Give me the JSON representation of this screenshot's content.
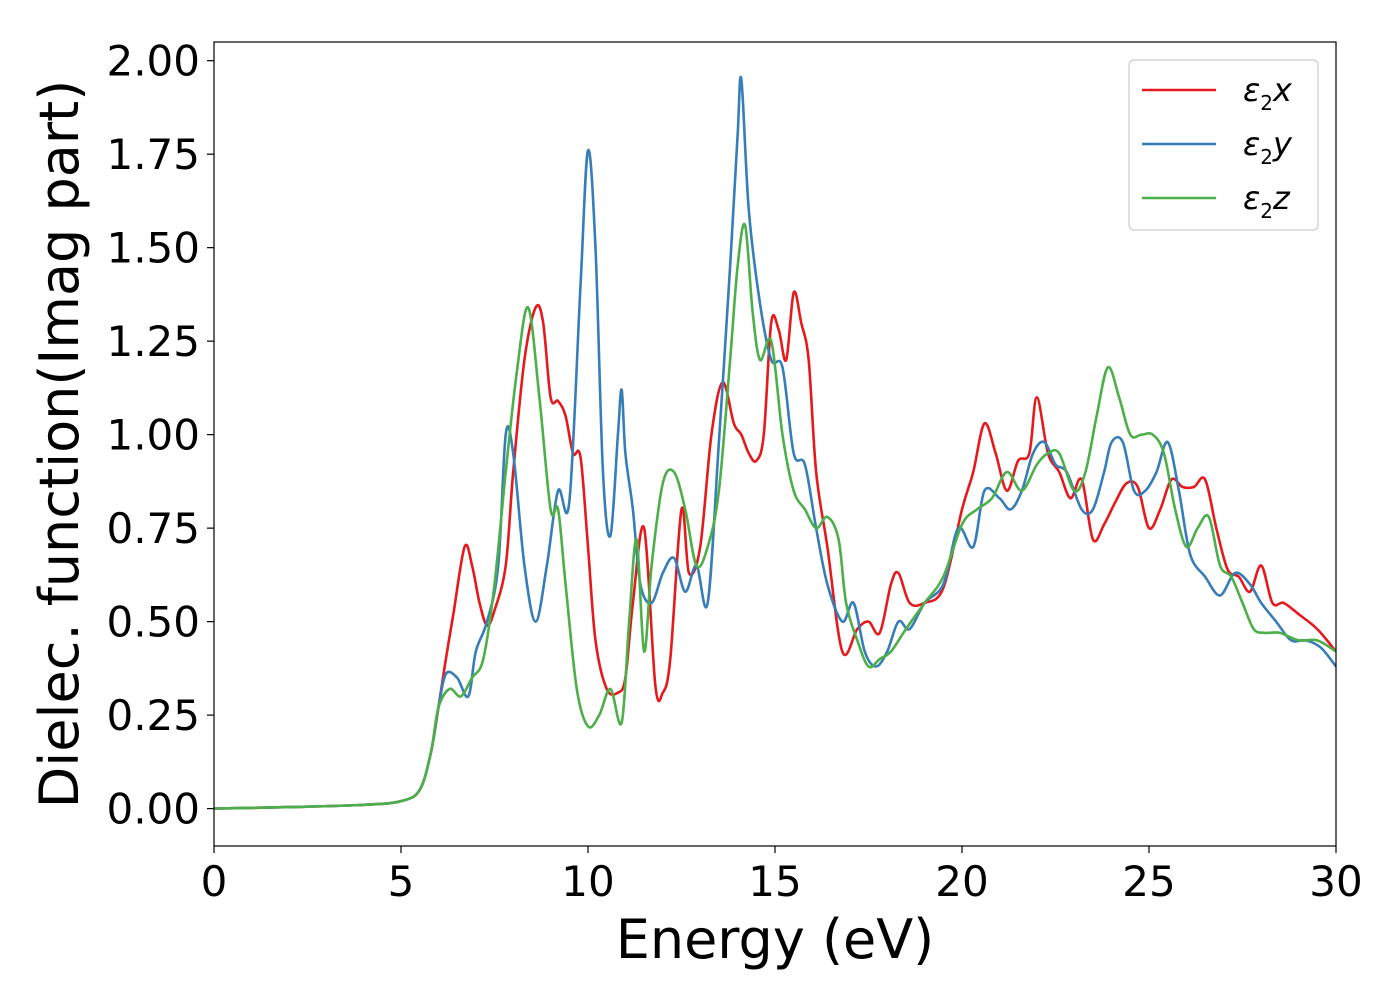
{
  "chart_data": {
    "type": "line",
    "xlabel": "Energy (eV)",
    "ylabel": "Dielec. function(Imag part)",
    "xlim": [
      0,
      30
    ],
    "ylim": [
      -0.1,
      2.05
    ],
    "xticks": [
      "0",
      "5",
      "10",
      "15",
      "20",
      "25",
      "30"
    ],
    "yticks": [
      "0.00",
      "0.25",
      "0.50",
      "0.75",
      "1.00",
      "1.25",
      "1.50",
      "1.75",
      "2.00"
    ],
    "grid": false,
    "legend_position": "top-right",
    "series": [
      {
        "name": "ε2x",
        "legend_main": "ε",
        "legend_sub": "2",
        "legend_tail": "x",
        "color": "#e41a1c",
        "x": [
          0,
          2,
          4,
          5,
          5.5,
          5.8,
          6.0,
          6.2,
          6.4,
          6.7,
          6.9,
          7.1,
          7.3,
          7.5,
          7.8,
          8.0,
          8.3,
          8.6,
          8.8,
          9.0,
          9.2,
          9.4,
          9.6,
          9.8,
          10.0,
          10.2,
          10.5,
          10.8,
          11.0,
          11.2,
          11.5,
          11.8,
          12.0,
          12.2,
          12.5,
          12.7,
          13.0,
          13.3,
          13.6,
          13.9,
          14.1,
          14.3,
          14.5,
          14.7,
          14.9,
          15.1,
          15.3,
          15.5,
          15.7,
          15.9,
          16.1,
          16.4,
          16.8,
          17.2,
          17.5,
          17.8,
          18.1,
          18.3,
          18.6,
          19.0,
          19.5,
          20.0,
          20.3,
          20.6,
          20.9,
          21.2,
          21.5,
          21.8,
          22.0,
          22.3,
          22.6,
          22.9,
          23.2,
          23.5,
          23.8,
          24.1,
          24.4,
          24.7,
          25.0,
          25.3,
          25.6,
          25.9,
          26.2,
          26.5,
          26.8,
          27.1,
          27.4,
          27.7,
          28.0,
          28.3,
          28.6,
          29.0,
          29.5,
          30.0
        ],
        "y": [
          0,
          0.004,
          0.01,
          0.02,
          0.05,
          0.15,
          0.27,
          0.4,
          0.52,
          0.7,
          0.65,
          0.55,
          0.49,
          0.53,
          0.65,
          0.9,
          1.2,
          1.34,
          1.3,
          1.1,
          1.09,
          1.05,
          0.95,
          0.94,
          0.7,
          0.45,
          0.32,
          0.31,
          0.35,
          0.55,
          0.75,
          0.33,
          0.31,
          0.4,
          0.8,
          0.63,
          0.7,
          1.0,
          1.14,
          1.03,
          1.0,
          0.95,
          0.93,
          1.0,
          1.3,
          1.28,
          1.2,
          1.38,
          1.3,
          1.2,
          0.9,
          0.7,
          0.42,
          0.48,
          0.5,
          0.47,
          0.6,
          0.63,
          0.55,
          0.55,
          0.59,
          0.8,
          0.9,
          1.03,
          0.95,
          0.85,
          0.93,
          0.95,
          1.1,
          0.95,
          0.9,
          0.83,
          0.88,
          0.72,
          0.76,
          0.82,
          0.87,
          0.86,
          0.75,
          0.8,
          0.88,
          0.86,
          0.86,
          0.88,
          0.75,
          0.64,
          0.62,
          0.58,
          0.65,
          0.55,
          0.55,
          0.52,
          0.48,
          0.42
        ]
      },
      {
        "name": "ε2y",
        "legend_main": "ε",
        "legend_sub": "2",
        "legend_tail": "y",
        "color": "#377eb8",
        "x": [
          0,
          2,
          4,
          5,
          5.5,
          5.8,
          6.0,
          6.2,
          6.5,
          6.8,
          7.0,
          7.3,
          7.6,
          7.8,
          8.0,
          8.3,
          8.6,
          8.9,
          9.2,
          9.5,
          9.8,
          10.0,
          10.2,
          10.4,
          10.6,
          10.8,
          10.9,
          11.0,
          11.2,
          11.4,
          11.7,
          12.0,
          12.3,
          12.6,
          12.9,
          13.2,
          13.5,
          13.8,
          14.0,
          14.1,
          14.3,
          14.6,
          14.9,
          15.2,
          15.5,
          15.8,
          16.1,
          16.4,
          16.8,
          17.1,
          17.4,
          17.7,
          18.0,
          18.3,
          18.6,
          19.0,
          19.5,
          19.9,
          20.3,
          20.6,
          21.0,
          21.3,
          21.6,
          21.9,
          22.2,
          22.5,
          22.8,
          23.2,
          23.5,
          23.8,
          24.0,
          24.3,
          24.6,
          24.9,
          25.2,
          25.5,
          25.8,
          26.1,
          26.5,
          26.9,
          27.3,
          27.7,
          28.0,
          28.4,
          28.8,
          29.2,
          29.6,
          30.0
        ],
        "y": [
          0,
          0.004,
          0.01,
          0.02,
          0.05,
          0.15,
          0.27,
          0.36,
          0.35,
          0.3,
          0.42,
          0.5,
          0.65,
          1.0,
          0.95,
          0.65,
          0.5,
          0.65,
          0.85,
          0.82,
          1.4,
          1.76,
          1.5,
          0.9,
          0.73,
          1.0,
          1.12,
          0.95,
          0.8,
          0.6,
          0.55,
          0.63,
          0.67,
          0.58,
          0.65,
          0.55,
          0.98,
          1.45,
          1.8,
          1.95,
          1.6,
          1.35,
          1.2,
          1.18,
          0.95,
          0.92,
          0.75,
          0.6,
          0.5,
          0.55,
          0.42,
          0.38,
          0.42,
          0.5,
          0.48,
          0.55,
          0.6,
          0.75,
          0.7,
          0.85,
          0.83,
          0.8,
          0.85,
          0.95,
          0.98,
          0.92,
          0.9,
          0.8,
          0.8,
          0.9,
          0.98,
          0.98,
          0.85,
          0.85,
          0.9,
          0.98,
          0.85,
          0.68,
          0.62,
          0.57,
          0.63,
          0.6,
          0.55,
          0.5,
          0.45,
          0.45,
          0.43,
          0.38
        ]
      },
      {
        "name": "ε2z",
        "legend_main": "ε",
        "legend_sub": "2",
        "legend_tail": "z",
        "color": "#4daf4a",
        "x": [
          0,
          2,
          4,
          5,
          5.5,
          5.8,
          6.0,
          6.3,
          6.6,
          6.9,
          7.2,
          7.5,
          7.8,
          8.1,
          8.4,
          8.7,
          9.0,
          9.2,
          9.4,
          9.7,
          10.0,
          10.3,
          10.6,
          10.9,
          11.1,
          11.3,
          11.5,
          11.7,
          12.0,
          12.3,
          12.6,
          12.9,
          13.2,
          13.5,
          13.8,
          14.0,
          14.2,
          14.4,
          14.6,
          14.9,
          15.2,
          15.5,
          15.8,
          16.1,
          16.4,
          16.7,
          16.9,
          17.2,
          17.5,
          17.8,
          18.1,
          18.5,
          19.0,
          19.5,
          20.0,
          20.4,
          20.8,
          21.2,
          21.6,
          22.0,
          22.3,
          22.6,
          23.0,
          23.3,
          23.6,
          23.9,
          24.2,
          24.5,
          24.8,
          25.1,
          25.4,
          25.7,
          26.0,
          26.3,
          26.6,
          26.9,
          27.2,
          27.5,
          27.8,
          28.1,
          28.5,
          29.0,
          29.5,
          30.0
        ],
        "y": [
          0,
          0.004,
          0.01,
          0.02,
          0.05,
          0.15,
          0.27,
          0.32,
          0.3,
          0.35,
          0.4,
          0.6,
          0.9,
          1.17,
          1.34,
          1.1,
          0.8,
          0.8,
          0.6,
          0.32,
          0.22,
          0.25,
          0.32,
          0.23,
          0.5,
          0.72,
          0.42,
          0.65,
          0.87,
          0.9,
          0.8,
          0.65,
          0.7,
          0.85,
          1.2,
          1.45,
          1.56,
          1.33,
          1.2,
          1.25,
          1.0,
          0.85,
          0.8,
          0.75,
          0.78,
          0.72,
          0.55,
          0.45,
          0.38,
          0.4,
          0.42,
          0.48,
          0.55,
          0.62,
          0.76,
          0.8,
          0.83,
          0.9,
          0.85,
          0.92,
          0.95,
          0.95,
          0.85,
          0.9,
          1.05,
          1.18,
          1.1,
          1.0,
          1.0,
          1.0,
          0.95,
          0.8,
          0.7,
          0.75,
          0.78,
          0.65,
          0.62,
          0.55,
          0.48,
          0.47,
          0.47,
          0.45,
          0.45,
          0.42
        ]
      }
    ]
  }
}
